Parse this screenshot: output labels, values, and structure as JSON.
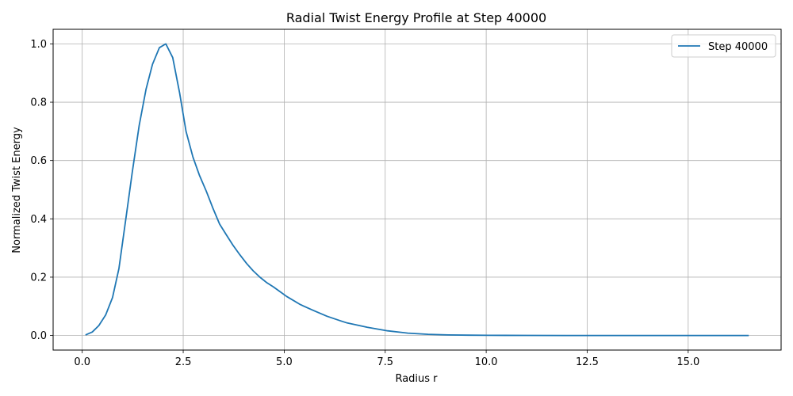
{
  "chart_data": {
    "type": "line",
    "title": "Radial Twist Energy Profile at Step 40000",
    "xlabel": "Radius r",
    "ylabel": "Normalized Twist Energy",
    "xlim": [
      -0.72,
      17.3
    ],
    "ylim": [
      -0.05,
      1.05
    ],
    "xticks": [
      0.0,
      2.5,
      5.0,
      7.5,
      10.0,
      12.5,
      15.0
    ],
    "xtick_labels": [
      "0.0",
      "2.5",
      "5.0",
      "7.5",
      "10.0",
      "12.5",
      "15.0"
    ],
    "yticks": [
      0.0,
      0.2,
      0.4,
      0.6,
      0.8,
      1.0
    ],
    "ytick_labels": [
      "0.0",
      "0.2",
      "0.4",
      "0.6",
      "0.8",
      "1.0"
    ],
    "grid": true,
    "legend_position": "top-right",
    "series": [
      {
        "name": "Step 40000",
        "color": "#1f77b4",
        "x": [
          0.08,
          0.25,
          0.41,
          0.58,
          0.75,
          0.91,
          1.08,
          1.24,
          1.41,
          1.58,
          1.74,
          1.91,
          2.07,
          2.24,
          2.41,
          2.57,
          2.74,
          2.9,
          3.07,
          3.24,
          3.4,
          3.57,
          3.73,
          3.9,
          4.07,
          4.23,
          4.4,
          4.56,
          4.73,
          4.9,
          5.06,
          5.4,
          5.72,
          6.06,
          6.4,
          6.56,
          7.06,
          7.56,
          8.06,
          8.56,
          9.06,
          9.56,
          10.06,
          11.0,
          12.0,
          13.0,
          14.0,
          15.0,
          16.0,
          16.5
        ],
        "y": [
          0.002,
          0.012,
          0.034,
          0.07,
          0.13,
          0.23,
          0.4,
          0.56,
          0.72,
          0.845,
          0.93,
          0.987,
          1.0,
          0.953,
          0.832,
          0.7,
          0.612,
          0.55,
          0.495,
          0.435,
          0.382,
          0.345,
          0.31,
          0.277,
          0.247,
          0.222,
          0.2,
          0.182,
          0.167,
          0.15,
          0.134,
          0.106,
          0.086,
          0.066,
          0.05,
          0.043,
          0.028,
          0.016,
          0.008,
          0.004,
          0.002,
          0.001,
          0.0005,
          0.0002,
          0.0001,
          0.0,
          0.0,
          0.0,
          0.0,
          0.0
        ]
      }
    ]
  }
}
